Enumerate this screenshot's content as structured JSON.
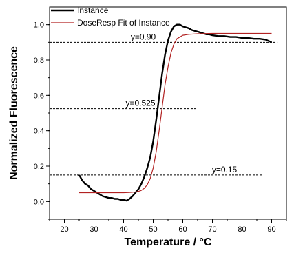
{
  "chart_data": {
    "type": "line",
    "title": "",
    "xlabel": "Temperature / °C",
    "ylabel": "Normalized Fluorescence",
    "xlim": [
      15,
      95
    ],
    "ylim": [
      -0.1,
      1.1
    ],
    "x_ticks": [
      20,
      30,
      40,
      50,
      60,
      70,
      80,
      90
    ],
    "y_ticks": [
      0.0,
      0.2,
      0.4,
      0.6,
      0.8,
      1.0
    ],
    "x_tick_labels": [
      "20",
      "30",
      "40",
      "50",
      "60",
      "70",
      "80",
      "90"
    ],
    "y_tick_labels": [
      "0.0",
      "0.2",
      "0.4",
      "0.6",
      "0.8",
      "1.0"
    ],
    "legend_position": "top-left",
    "grid": false,
    "series": [
      {
        "name": "Instance",
        "color": "#000000",
        "style": "solid-thick",
        "x": [
          25,
          26,
          27,
          28,
          29,
          30,
          31,
          32,
          33,
          34,
          35,
          36,
          37,
          38,
          39,
          40,
          41,
          42,
          43,
          44,
          45,
          46,
          47,
          48,
          49,
          50,
          51,
          52,
          53,
          54,
          55,
          56,
          57,
          58,
          59,
          60,
          61,
          62,
          63,
          64,
          65,
          66,
          67,
          68,
          69,
          70,
          72,
          74,
          76,
          78,
          80,
          82,
          84,
          86,
          88,
          90
        ],
        "y": [
          0.15,
          0.12,
          0.1,
          0.09,
          0.07,
          0.06,
          0.05,
          0.04,
          0.03,
          0.025,
          0.02,
          0.02,
          0.015,
          0.015,
          0.01,
          0.01,
          0.005,
          0.015,
          0.03,
          0.05,
          0.07,
          0.1,
          0.14,
          0.19,
          0.25,
          0.34,
          0.46,
          0.59,
          0.72,
          0.83,
          0.91,
          0.96,
          0.99,
          1.0,
          1.0,
          0.99,
          0.985,
          0.98,
          0.97,
          0.965,
          0.96,
          0.955,
          0.95,
          0.945,
          0.945,
          0.94,
          0.935,
          0.935,
          0.93,
          0.93,
          0.925,
          0.925,
          0.92,
          0.92,
          0.915,
          0.9
        ]
      },
      {
        "name": "DoseResp Fit of Instance",
        "color": "#b22222",
        "style": "solid-thin",
        "x": [
          25,
          30,
          35,
          40,
          42,
          44,
          45,
          46,
          47,
          48,
          49,
          50,
          51,
          52,
          53,
          54,
          55,
          56,
          57,
          58,
          60,
          62,
          65,
          70,
          75,
          80,
          85,
          90
        ],
        "y": [
          0.05,
          0.05,
          0.05,
          0.05,
          0.051,
          0.054,
          0.057,
          0.063,
          0.075,
          0.095,
          0.13,
          0.19,
          0.28,
          0.4,
          0.53,
          0.66,
          0.76,
          0.84,
          0.89,
          0.92,
          0.94,
          0.945,
          0.948,
          0.95,
          0.95,
          0.95,
          0.95,
          0.95
        ]
      }
    ],
    "reference_lines": [
      {
        "y": 0.9,
        "label": "y=0.90",
        "x_start": 15,
        "x_end": 92
      },
      {
        "y": 0.525,
        "label": "y=0.525",
        "x_start": 15,
        "x_end": 65
      },
      {
        "y": 0.15,
        "label": "y=0.15",
        "x_start": 15,
        "x_end": 87
      }
    ]
  }
}
